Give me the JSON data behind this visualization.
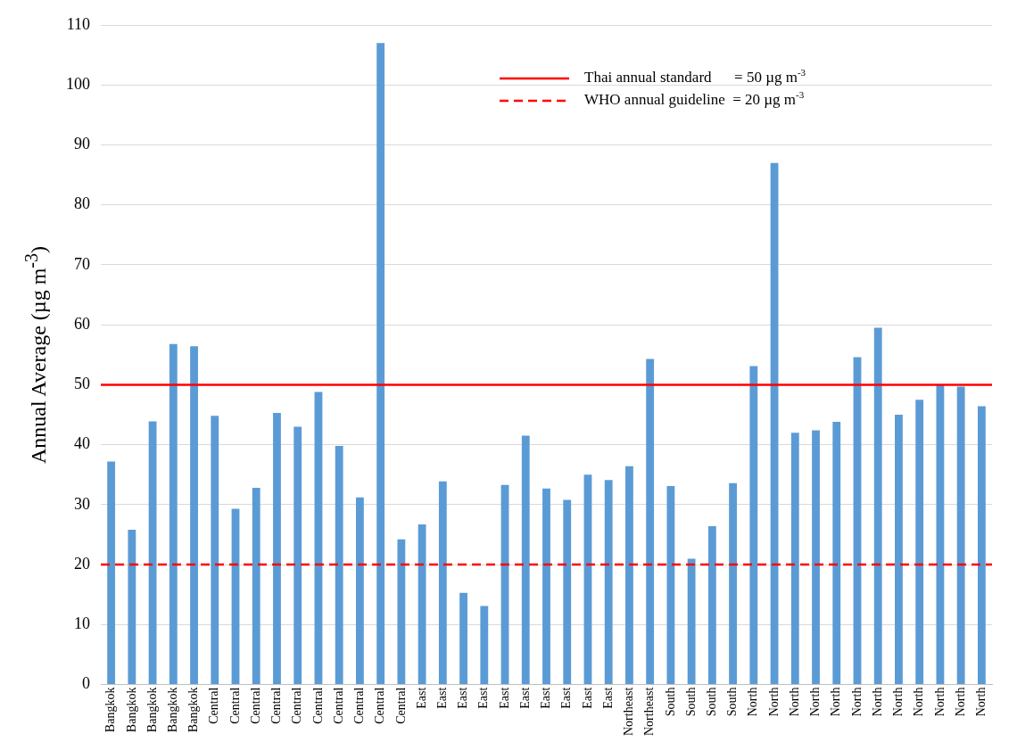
{
  "chart_data": {
    "type": "bar",
    "ylabel": "Annual Average (µg m$^{-3}$)",
    "categories": [
      "Bangkok",
      "Bangkok",
      "Bangkok",
      "Bangkok",
      "Bangkok",
      "Central",
      "Central",
      "Central",
      "Central",
      "Central",
      "Central",
      "Central",
      "Central",
      "Central",
      "Central",
      "East",
      "East",
      "East",
      "East",
      "East",
      "East",
      "East",
      "East",
      "East",
      "East",
      "Northeast",
      "Northeast",
      "South",
      "South",
      "South",
      "South",
      "North",
      "North",
      "North",
      "North",
      "North",
      "North",
      "North",
      "North",
      "North",
      "North",
      "North",
      "North"
    ],
    "values": [
      37.2,
      25.8,
      43.9,
      56.8,
      56.4,
      44.8,
      29.3,
      32.8,
      45.3,
      43.0,
      48.8,
      39.8,
      31.2,
      107,
      24.2,
      26.7,
      33.9,
      15.3,
      13.1,
      33.3,
      41.5,
      32.7,
      30.8,
      35.0,
      34.1,
      36.4,
      54.3,
      33.1,
      21.0,
      26.4,
      33.6,
      53.1,
      87.0,
      42.0,
      42.4,
      43.8,
      54.6,
      59.5,
      45.0,
      47.5,
      50.0,
      49.7,
      46.4
    ],
    "color": "#5b9bd5",
    "ylim": [
      0,
      110
    ],
    "yticks": [
      0,
      10,
      20,
      30,
      40,
      50,
      60,
      70,
      80,
      90,
      100,
      110
    ],
    "grid": "y",
    "legend": "top right",
    "ref_lines": [
      {
        "axis": "y",
        "value": 50,
        "label": "Thai annual standard      = 50 µg m$^{-3}$",
        "color": "#ff0000",
        "line_style": "solid"
      },
      {
        "axis": "y",
        "value": 20,
        "label": "WHO annual guideline  = 20 µg m$^{-3}$",
        "color": "#ff0000",
        "line_style": "dashed"
      }
    ]
  }
}
